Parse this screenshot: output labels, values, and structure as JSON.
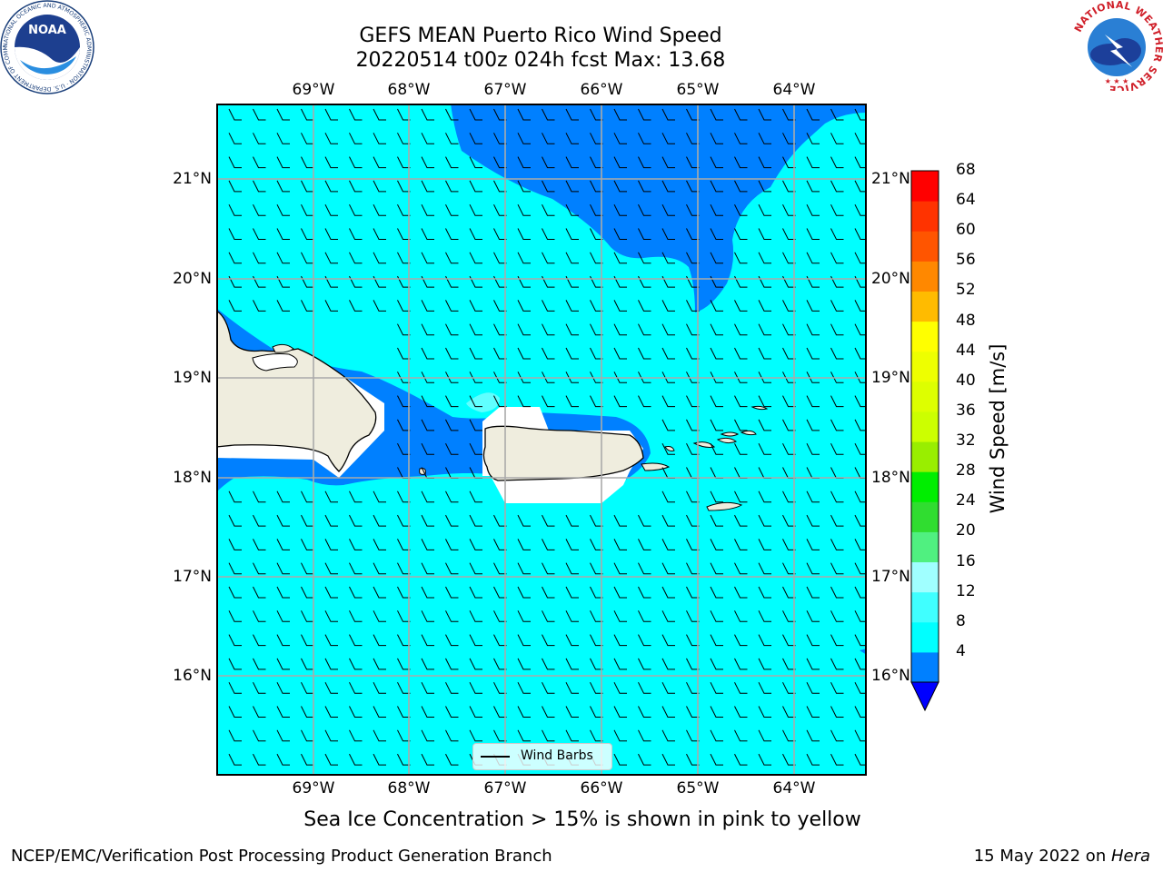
{
  "title": {
    "line1": "GEFS MEAN Puerto Rico Wind Speed",
    "line2": "20220514 t00z 024h fcst   Max: 13.68"
  },
  "map": {
    "lon_labels": [
      "69°W",
      "68°W",
      "67°W",
      "66°W",
      "65°W",
      "64°W"
    ],
    "lat_labels": [
      "21°N",
      "20°N",
      "19°N",
      "18°N",
      "17°N",
      "16°N"
    ],
    "lon_range": [
      -70,
      -63.25
    ],
    "lat_range": [
      15.05,
      21.75
    ],
    "gridlines": true,
    "ocean_color": "#00ffff",
    "low_wind_color": "#0080ff",
    "land_color": "#efedde"
  },
  "legend": {
    "label": "Wind Barbs"
  },
  "colorbar": {
    "label": "Wind Speed [m/s]",
    "ticks": [
      "68",
      "64",
      "60",
      "56",
      "52",
      "48",
      "44",
      "40",
      "36",
      "32",
      "28",
      "24",
      "20",
      "16",
      "12",
      "8",
      "4"
    ],
    "bounds": [
      4,
      8,
      12,
      16,
      20,
      24,
      28,
      32,
      36,
      40,
      44,
      48,
      52,
      56,
      60,
      64,
      68
    ],
    "colors": [
      "#0080ff",
      "#00ffff",
      "#40ffff",
      "#a0ffff",
      "#50f080",
      "#30dd30",
      "#00ee00",
      "#99ee00",
      "#ccff00",
      "#ddff00",
      "#eeff00",
      "#ffff00",
      "#ffbb00",
      "#ff8800",
      "#ff5500",
      "#ff3300",
      "#ff0000"
    ],
    "extend_color": "#0000ff"
  },
  "sea_ice_note": "Sea Ice Concentration > 15% is shown in pink to yellow",
  "footer": {
    "left": "NCEP/EMC/Verification Post Processing Product Generation Branch",
    "date": "15 May 2022 on ",
    "machine": "Hera"
  },
  "logos": {
    "noaa": "NOAA",
    "noaa_ring": "NATIONAL OCEANIC AND ATMOSPHERIC ADMINISTRATION · U.S. DEPARTMENT OF COMMERCE",
    "nws_ring": "NATIONAL WEATHER SERVICE"
  },
  "chart_data": {
    "type": "map",
    "title": "GEFS MEAN Puerto Rico Wind Speed",
    "subtitle": "20220514 t00z 024h fcst   Max: 13.68",
    "colorbar_label": "Wind Speed [m/s]",
    "max_value": 13.68,
    "xlim": [
      -70,
      -63.25
    ],
    "ylim": [
      15.05,
      21.75
    ],
    "layers": [
      "wind speed filled contours",
      "wind barbs",
      "coastlines"
    ]
  }
}
